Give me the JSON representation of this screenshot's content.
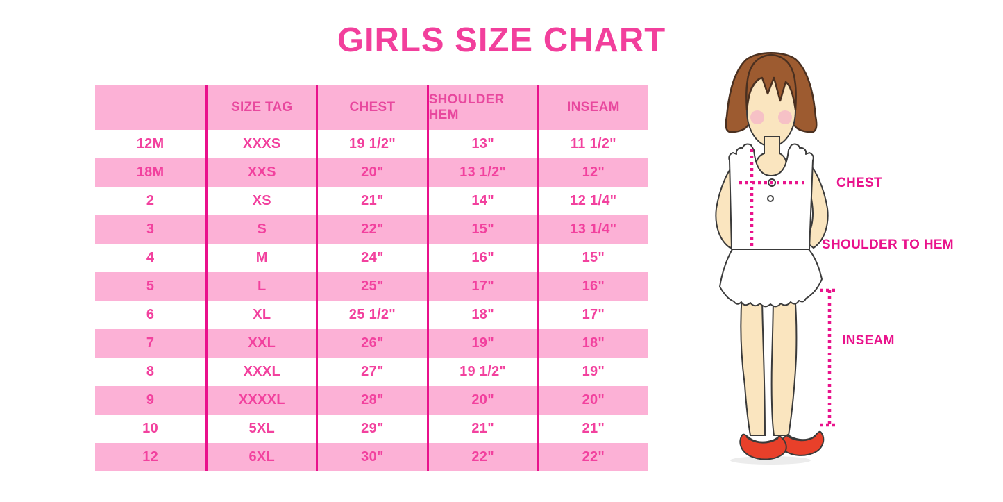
{
  "title": "GIRLS SIZE CHART",
  "chart_data": {
    "type": "table",
    "title": "GIRLS SIZE CHART",
    "columns": [
      "",
      "SIZE TAG",
      "CHEST",
      "SHOULDER HEM",
      "INSEAM"
    ],
    "rows": [
      [
        "12M",
        "XXXS",
        "19 1/2\"",
        "13\"",
        "11 1/2\""
      ],
      [
        "18M",
        "XXS",
        "20\"",
        "13 1/2\"",
        "12\""
      ],
      [
        "2",
        "XS",
        "21\"",
        "14\"",
        "12 1/4\""
      ],
      [
        "3",
        "S",
        "22\"",
        "15\"",
        "13 1/4\""
      ],
      [
        "4",
        "M",
        "24\"",
        "16\"",
        "15\""
      ],
      [
        "5",
        "L",
        "25\"",
        "17\"",
        "16\""
      ],
      [
        "6",
        "XL",
        "25 1/2\"",
        "18\"",
        "17\""
      ],
      [
        "7",
        "XXL",
        "26\"",
        "19\"",
        "18\""
      ],
      [
        "8",
        "XXXL",
        "27\"",
        "19 1/2\"",
        "19\""
      ],
      [
        "9",
        "XXXXL",
        "28\"",
        "20\"",
        "20\""
      ],
      [
        "10",
        "5XL",
        "29\"",
        "21\"",
        "21\""
      ],
      [
        "12",
        "6XL",
        "30\"",
        "22\"",
        "22\""
      ]
    ]
  },
  "diagram": {
    "chest_label": "CHEST",
    "shoulder_to_hem_label": "SHOULDER TO HEM",
    "inseam_label": "INSEAM"
  },
  "colors": {
    "title_pink": "#F23F9C",
    "row_pink": "#FCB1D6",
    "divider_pink": "#E9118C",
    "header_text_pink": "#E8489E",
    "cell_text_pink": "#F2419E",
    "label_magenta": "#E9138C",
    "hair_brown": "#9D5B30",
    "hair_outline": "#4A3020",
    "skin": "#FAE5BF",
    "outline_dark": "#3A3A3A",
    "blush": "#F5B8C8",
    "shoe_red": "#E8402A"
  }
}
